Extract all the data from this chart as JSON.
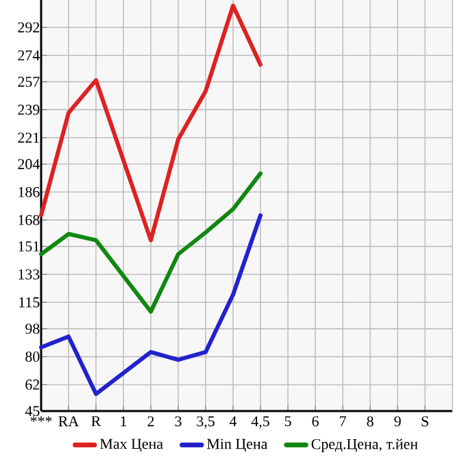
{
  "chart_data": {
    "type": "line",
    "categories": [
      "***",
      "RA",
      "R",
      "1",
      "2",
      "3",
      "3,5",
      "4",
      "4,5",
      "5",
      "6",
      "7",
      "8",
      "9",
      "S"
    ],
    "series": [
      {
        "name": "Max Цена",
        "color": "#dd2222",
        "values": [
          171,
          237,
          258,
          null,
          155,
          220,
          251,
          306,
          268,
          null,
          null,
          null,
          null,
          null,
          null
        ]
      },
      {
        "name": "Min Цена",
        "color": "#2222cc",
        "values": [
          86,
          93,
          56,
          null,
          83,
          78,
          83,
          120,
          171,
          null,
          null,
          null,
          null,
          null,
          null
        ]
      },
      {
        "name": "Сред.Цена, т.йен",
        "color": "#118811",
        "values": [
          146,
          159,
          155,
          null,
          109,
          146,
          160,
          175,
          198,
          null,
          null,
          null,
          null,
          null,
          null
        ]
      }
    ],
    "ylim": [
      45,
      309.64
    ],
    "yticks": [
      45,
      62,
      80,
      98,
      115,
      133,
      151,
      168,
      186,
      204,
      221,
      239,
      257,
      274,
      292
    ],
    "grid": true,
    "legend": "bottom",
    "marker": "none",
    "line_style": "solid"
  }
}
